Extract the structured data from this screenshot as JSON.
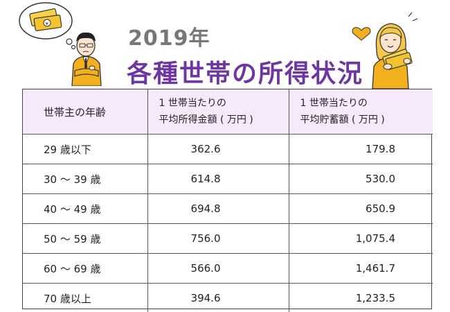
{
  "title": {
    "year": "2019年",
    "main": "各種世帯の所得状況"
  },
  "table": {
    "headers": [
      {
        "line1": "世帯主の年齢",
        "line2": ""
      },
      {
        "line1": "1 世帯当たりの",
        "line2": "平均所得金額 ( 万円 )"
      },
      {
        "line1": "1 世帯当たりの",
        "line2": "平均貯蓄額 ( 万円 )"
      }
    ],
    "rows": [
      {
        "age": "29 歳以下",
        "income": "362.6",
        "savings": "179.8"
      },
      {
        "age": "30 〜 39 歳",
        "income": "614.8",
        "savings": "530.0"
      },
      {
        "age": "40 〜 49 歳",
        "income": "694.8",
        "savings": "650.9"
      },
      {
        "age": "50 〜 59 歳",
        "income": "756.0",
        "savings": "1,075.4"
      },
      {
        "age": "60 〜 69 歳",
        "income": "566.0",
        "savings": "1,461.7"
      },
      {
        "age": "70 歳以上",
        "income": "394.6",
        "savings": "1,233.5"
      }
    ]
  },
  "colors": {
    "title_main": "#6d36a0",
    "title_year": "#777777",
    "header_bg": "#f6e9fb",
    "jacket": "#f2b01e"
  },
  "icons": {
    "man": "thinking-man-illustration",
    "woman": "woman-with-money-illustration"
  }
}
